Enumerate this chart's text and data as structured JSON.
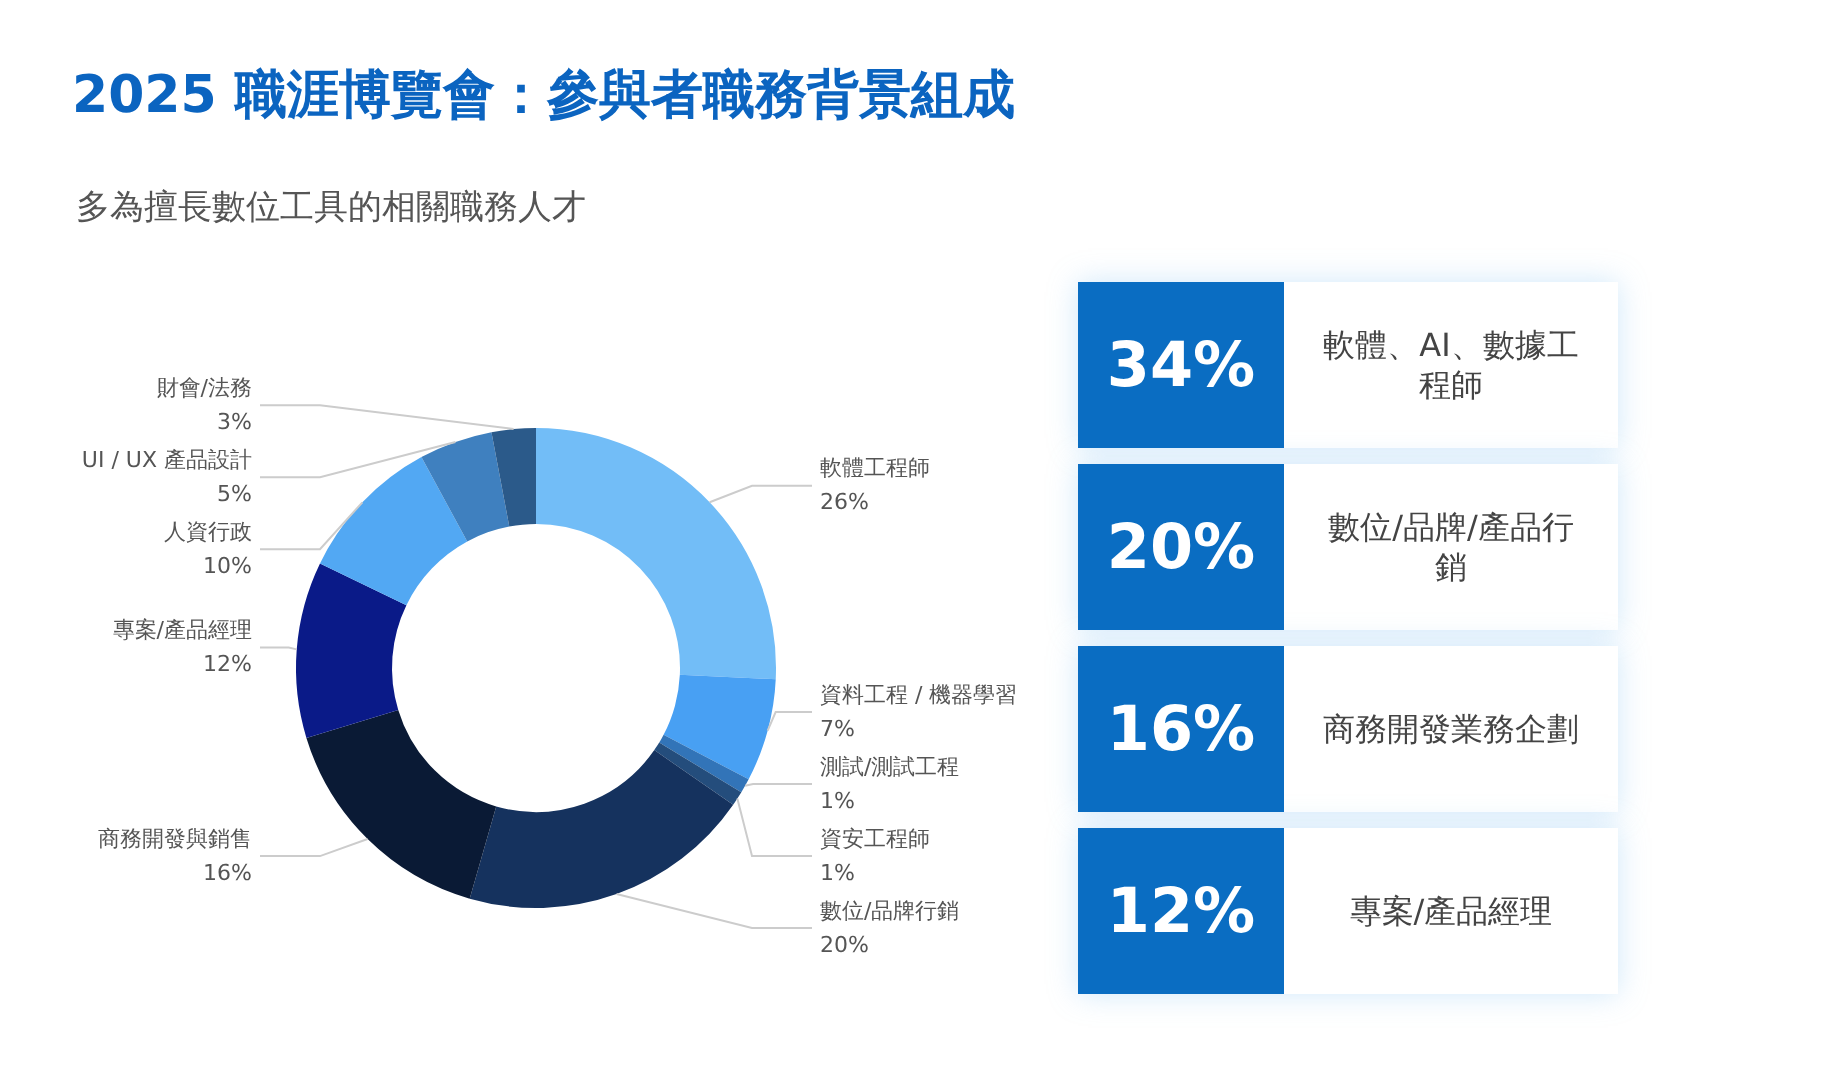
{
  "chart_data": [
    {
      "type": "donut",
      "title": "2025 職涯博覽會：參與者職務背景組成",
      "subtitle": "多為擅長數位工具的相關職務人才",
      "categories": [
        "軟體工程師",
        "資料工程 / 機器學習",
        "測試/測試工程",
        "資安工程師",
        "數位/品牌行銷",
        "商務開發與銷售",
        "專案/產品經理",
        "人資行政",
        "UI / UX 產品設計",
        "財會/法務"
      ],
      "values": [
        26,
        7,
        1,
        1,
        20,
        16,
        12,
        10,
        5,
        3
      ],
      "value_labels": [
        "26%",
        "7%",
        "1%",
        "1%",
        "20%",
        "16%",
        "12%",
        "10%",
        "5%",
        "3%"
      ],
      "colors": [
        "#72bdf7",
        "#48a0f3",
        "#3274b8",
        "#244d7c",
        "#15325e",
        "#0a1a35",
        "#0a1a88",
        "#52a8f3",
        "#3f80bf",
        "#2b5a8a"
      ]
    },
    {
      "type": "other",
      "annotations": [
        "34%",
        "軟體、AI、數據工程師",
        "20%",
        "數位/品牌/產品行銷",
        "16%",
        "商務開發業務企劃",
        "12%",
        "專案/產品經理"
      ]
    }
  ]
}
